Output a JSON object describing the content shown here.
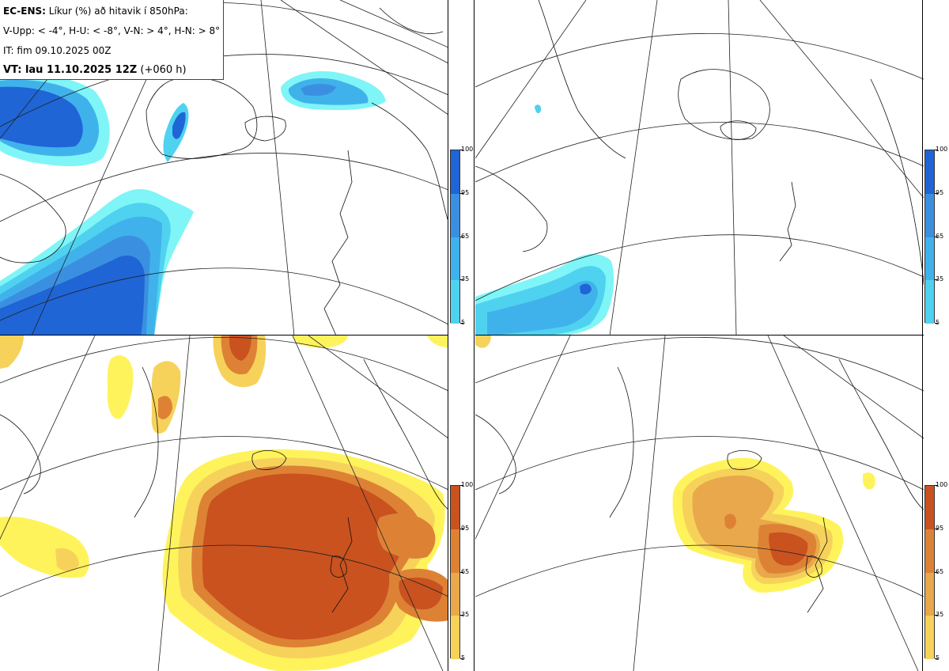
{
  "info": {
    "title_bold": "EC-ENS:",
    "title_rest": " Líkur (%) að hitavik í 850hPa:",
    "line2": "V-Upp: < -4°, H-U: < -8°, V-N: > 4°, H-N: > 8°",
    "line3": "IT: fim 09.10.2025 00Z",
    "line4_bold": "VT: lau 11.10.2025 12Z",
    "line4_rest": " (+060 h)"
  },
  "colorbar": {
    "ticks": [
      "100",
      "95",
      "65",
      "35",
      "5"
    ]
  },
  "colors": {
    "cold": [
      "#7ff5f7",
      "#4fd2f0",
      "#40b2eb",
      "#3b8fe0",
      "#1f65d6"
    ],
    "warm": [
      "#fff35c",
      "#f6d25b",
      "#e8a84b",
      "#dd8235",
      "#c9521f"
    ]
  },
  "panels": [
    {
      "name": "V-Upp",
      "scheme": "cold"
    },
    {
      "name": "H-U",
      "scheme": "cold"
    },
    {
      "name": "V-N",
      "scheme": "warm"
    },
    {
      "name": "H-N",
      "scheme": "warm"
    }
  ]
}
